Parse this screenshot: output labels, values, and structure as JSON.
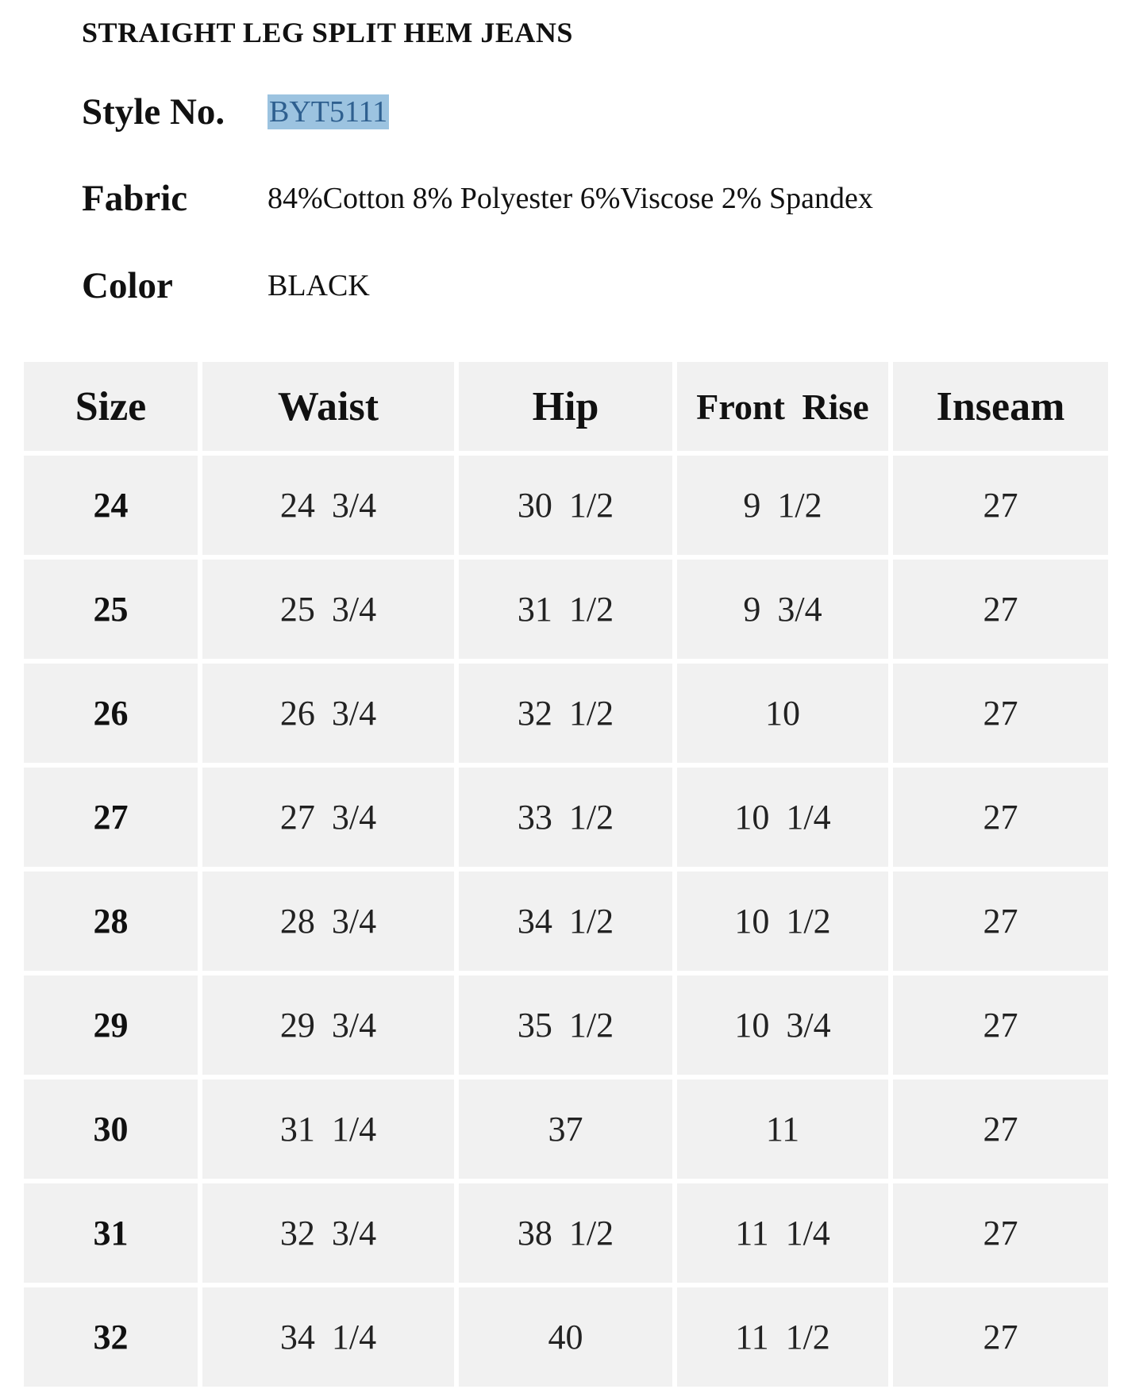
{
  "title": "STRAIGHT LEG SPLIT HEM JEANS",
  "info": [
    {
      "label": "Style No.",
      "value": "BYT5111",
      "highlighted": true
    },
    {
      "label": "Fabric",
      "value": "84%Cotton 8% Polyester 6%Viscose 2% Spandex"
    },
    {
      "label": "Color",
      "value": "BLACK"
    }
  ],
  "highlight_color": "#9cc3e0",
  "table": {
    "headers": [
      "Size",
      "Waist",
      "Hip",
      "Front Rise",
      "Inseam"
    ],
    "rows": [
      [
        "24",
        "24 3/4",
        "30 1/2",
        "9 1/2",
        "27"
      ],
      [
        "25",
        "25 3/4",
        "31 1/2",
        "9 3/4",
        "27"
      ],
      [
        "26",
        "26 3/4",
        "32 1/2",
        "10",
        "27"
      ],
      [
        "27",
        "27 3/4",
        "33 1/2",
        "10 1/4",
        "27"
      ],
      [
        "28",
        "28 3/4",
        "34 1/2",
        "10 1/2",
        "27"
      ],
      [
        "29",
        "29 3/4",
        "35 1/2",
        "10 3/4",
        "27"
      ],
      [
        "30",
        "31 1/4",
        "37",
        "11",
        "27"
      ],
      [
        "31",
        "32 3/4",
        "38 1/2",
        "11 1/4",
        "27"
      ],
      [
        "32",
        "34 1/4",
        "40",
        "11 1/2",
        "27"
      ]
    ]
  }
}
